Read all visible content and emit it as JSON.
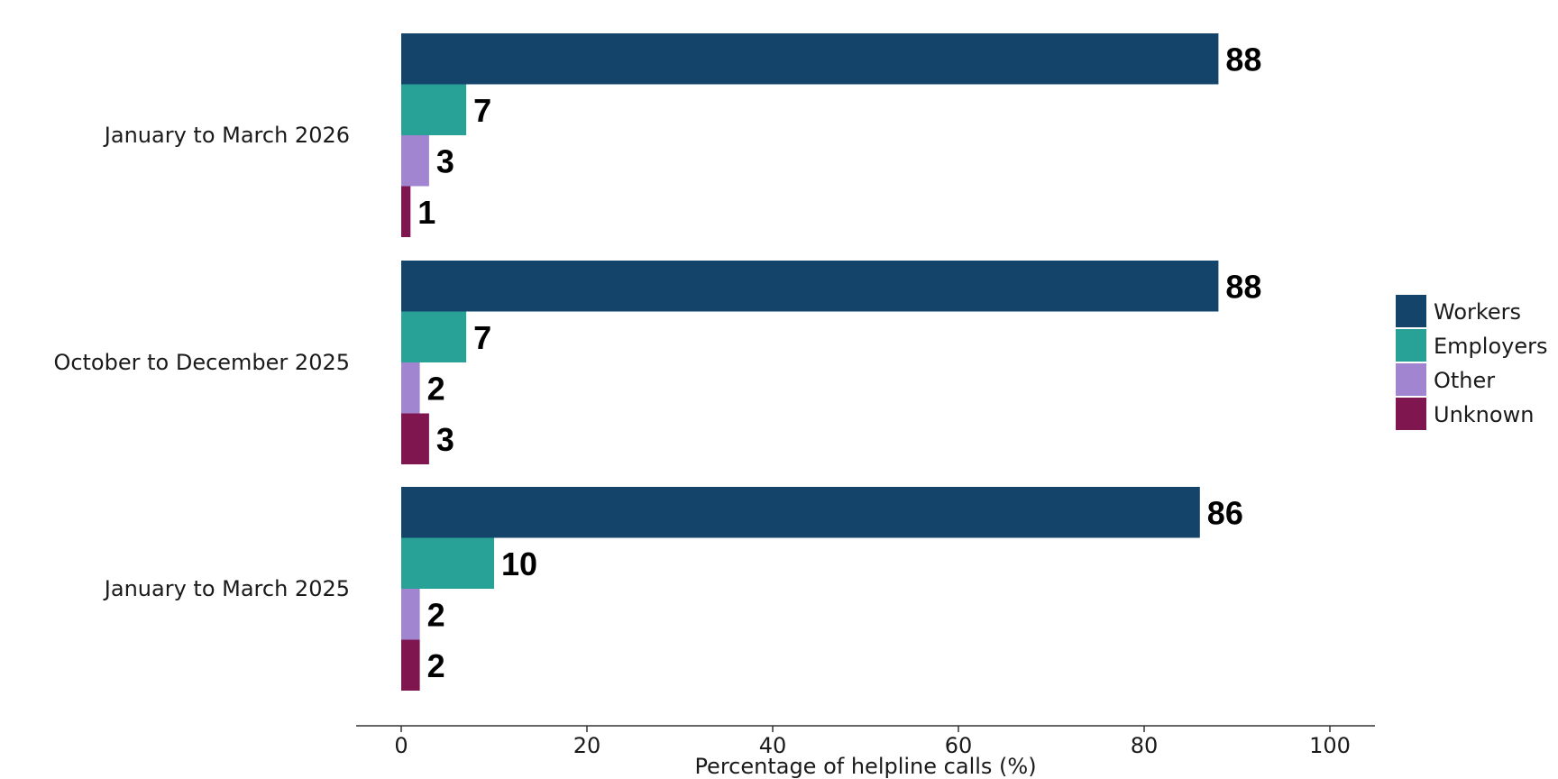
{
  "chart_data": {
    "type": "bar",
    "orientation": "horizontal",
    "categories": [
      "January to March 2026",
      "October to December 2025",
      "January to March 2025"
    ],
    "series": [
      {
        "name": "Workers",
        "values": [
          88,
          88,
          86
        ],
        "color": "#15446b"
      },
      {
        "name": "Employers",
        "values": [
          7,
          7,
          10
        ],
        "color": "#28a197"
      },
      {
        "name": "Other",
        "values": [
          3,
          2,
          2
        ],
        "color": "#a285d1"
      },
      {
        "name": "Unknown",
        "values": [
          1,
          3,
          2
        ],
        "color": "#801650"
      }
    ],
    "xlabel": "Percentage of helpline calls (%)",
    "ylabel": "",
    "xlim": [
      0,
      100
    ],
    "xticks": [
      0,
      20,
      40,
      60,
      80,
      100
    ],
    "grid": false,
    "legend_position": "right"
  }
}
